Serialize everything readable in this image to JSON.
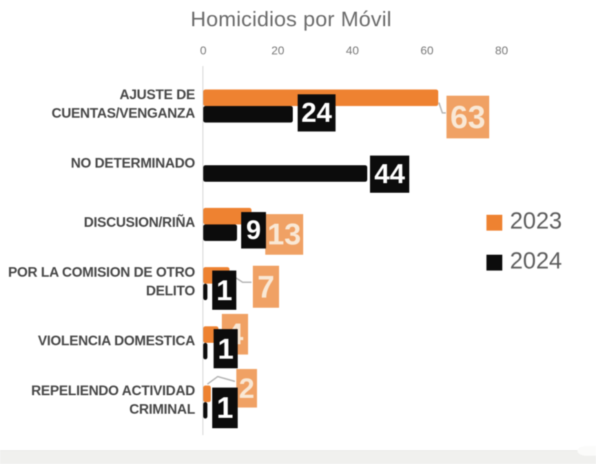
{
  "chart_data": {
    "type": "bar",
    "orientation": "horizontal",
    "title": "Homicidios por Móvil",
    "categories": [
      "AJUSTE DE CUENTAS/VENGANZA",
      "NO DETERMINADO",
      "DISCUSION/RIÑA",
      "POR LA COMISION DE OTRO DELITO",
      "VIOLENCIA DOMESTICA",
      "REPELIENDO ACTIVIDAD CRIMINAL"
    ],
    "category_display_lines": [
      [
        "AJUSTE DE",
        "CUENTAS/VENGANZA"
      ],
      [
        "NO DETERMINADO"
      ],
      [
        "DISCUSION/RIÑA"
      ],
      [
        "POR LA COMISION DE OTRO",
        "DELITO"
      ],
      [
        "VIOLENCIA DOMESTICA"
      ],
      [
        "REPELIENDO ACTIVIDAD",
        "CRIMINAL"
      ]
    ],
    "series": [
      {
        "name": "2023",
        "color": "#ee8231",
        "label_box_color": "#f0a164",
        "label_text_color": "#f9e8d5",
        "values": [
          63,
          null,
          13,
          7,
          4,
          2
        ]
      },
      {
        "name": "2024",
        "color": "#0c0c0c",
        "label_box_color": "#0c0c0c",
        "label_text_color": "#ffffff",
        "values": [
          24,
          44,
          9,
          1,
          1,
          1
        ]
      }
    ],
    "x_ticks": [
      0,
      20,
      40,
      60,
      80
    ],
    "xlim": [
      0,
      80
    ],
    "grid": false,
    "show_data_labels": true,
    "legend_position": "middle-right"
  }
}
